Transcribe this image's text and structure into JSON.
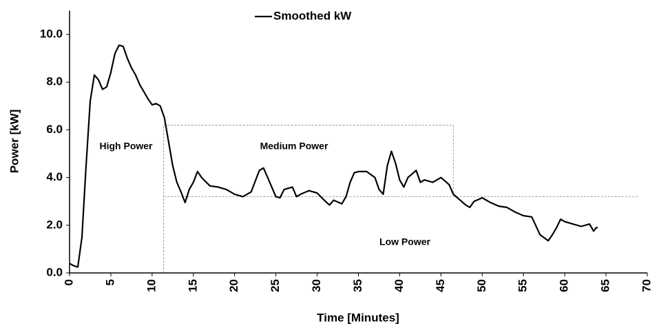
{
  "chart_data": {
    "type": "line",
    "x_label": "Time [Minutes]",
    "y_label": "Power [kW]",
    "xlim": [
      0,
      70
    ],
    "xticks": [
      0,
      5,
      10,
      15,
      20,
      25,
      30,
      35,
      40,
      45,
      50,
      55,
      60,
      65,
      70
    ],
    "ylim": [
      0,
      11
    ],
    "yticks": [
      {
        "value": 0,
        "label": "0.0"
      },
      {
        "value": 2,
        "label": "2.0"
      },
      {
        "value": 4,
        "label": "4.0"
      },
      {
        "value": 6,
        "label": "6.0"
      },
      {
        "value": 8,
        "label": "8.0"
      },
      {
        "value": 10,
        "label": "10.0"
      }
    ],
    "legend": "top",
    "series": [
      {
        "name": "Smoothed kW",
        "color": "#000000",
        "x": [
          0,
          0.5,
          1,
          1.5,
          2,
          2.5,
          3,
          3.5,
          4,
          4.5,
          5,
          5.5,
          6,
          6.5,
          7,
          7.5,
          8,
          8.5,
          9,
          9.5,
          10,
          10.5,
          11,
          11.5,
          12,
          12.5,
          13,
          13.5,
          14,
          14.5,
          15,
          15.5,
          16,
          17,
          18,
          19,
          20,
          21,
          22,
          23,
          23.5,
          24,
          25,
          25.5,
          26,
          27,
          27.5,
          28,
          29,
          30,
          31,
          31.5,
          32,
          33,
          33.5,
          34,
          34.5,
          35,
          36,
          37,
          37.5,
          38,
          38.5,
          39,
          39.5,
          40,
          40.5,
          41,
          42,
          42.5,
          43,
          44,
          45,
          46,
          46.5,
          47,
          48,
          48.5,
          49,
          50,
          51,
          52,
          53,
          54,
          55,
          56,
          57,
          58,
          58.5,
          59,
          59.5,
          60,
          61,
          62,
          63,
          63.5,
          63.8,
          64
        ],
        "values": [
          0.4,
          0.3,
          0.25,
          1.5,
          4.5,
          7.2,
          8.3,
          8.1,
          7.7,
          7.8,
          8.4,
          9.2,
          9.55,
          9.5,
          9.0,
          8.6,
          8.3,
          7.9,
          7.6,
          7.3,
          7.05,
          7.1,
          7.0,
          6.5,
          5.5,
          4.5,
          3.8,
          3.4,
          2.95,
          3.5,
          3.8,
          4.25,
          4.0,
          3.65,
          3.6,
          3.5,
          3.3,
          3.2,
          3.4,
          4.3,
          4.4,
          4.0,
          3.2,
          3.15,
          3.5,
          3.6,
          3.2,
          3.3,
          3.45,
          3.35,
          3.0,
          2.85,
          3.05,
          2.9,
          3.2,
          3.8,
          4.2,
          4.25,
          4.25,
          4.0,
          3.5,
          3.3,
          4.5,
          5.1,
          4.6,
          3.9,
          3.6,
          4.0,
          4.3,
          3.8,
          3.9,
          3.8,
          4.0,
          3.7,
          3.3,
          3.15,
          2.85,
          2.75,
          3.0,
          3.15,
          2.95,
          2.8,
          2.75,
          2.55,
          2.4,
          2.35,
          1.6,
          1.35,
          1.6,
          1.9,
          2.25,
          2.15,
          2.05,
          1.95,
          2.05,
          1.75,
          1.9,
          1.9
        ]
      }
    ],
    "guides": [
      [
        11.4,
        0,
        11.4,
        6.2
      ],
      [
        11.4,
        6.2,
        46.5,
        6.2
      ],
      [
        46.5,
        6.2,
        46.5,
        3.2
      ],
      [
        11.4,
        3.2,
        69,
        3.2
      ]
    ],
    "annotations": [
      "High Power",
      "Medium Power",
      "Low Power"
    ]
  }
}
